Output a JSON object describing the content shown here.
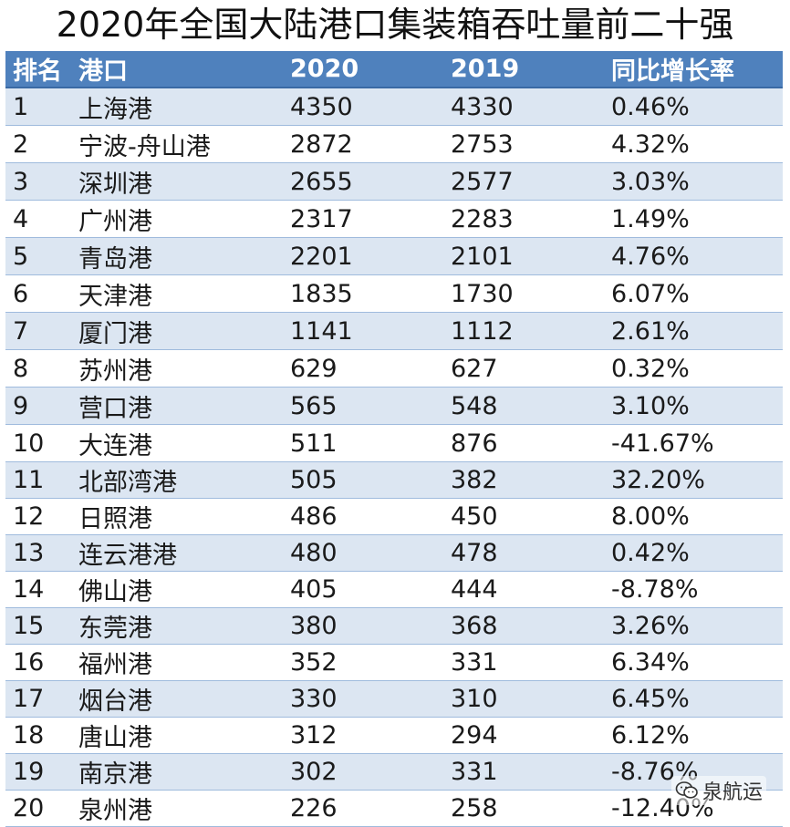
{
  "title": "2020年全国大陆港口集装箱吞吐量前二十强",
  "table": {
    "headers": [
      "排名",
      "港口",
      "2020",
      "2019",
      "同比增长率"
    ],
    "rows": [
      [
        "1",
        "上海港",
        "4350",
        "4330",
        "0.46%"
      ],
      [
        "2",
        "宁波-舟山港",
        "2872",
        "2753",
        "4.32%"
      ],
      [
        "3",
        "深圳港",
        "2655",
        "2577",
        "3.03%"
      ],
      [
        "4",
        "广州港",
        "2317",
        "2283",
        "1.49%"
      ],
      [
        "5",
        "青岛港",
        "2201",
        "2101",
        "4.76%"
      ],
      [
        "6",
        "天津港",
        "1835",
        "1730",
        "6.07%"
      ],
      [
        "7",
        "厦门港",
        "1141",
        "1112",
        "2.61%"
      ],
      [
        "8",
        "苏州港",
        "629",
        "627",
        "0.32%"
      ],
      [
        "9",
        "营口港",
        "565",
        "548",
        "3.10%"
      ],
      [
        "10",
        "大连港",
        "511",
        "876",
        "-41.67%"
      ],
      [
        "11",
        "北部湾港",
        "505",
        "382",
        "32.20%"
      ],
      [
        "12",
        "日照港",
        "486",
        "450",
        "8.00%"
      ],
      [
        "13",
        "连云港港",
        "480",
        "478",
        "0.42%"
      ],
      [
        "14",
        "佛山港",
        "405",
        "444",
        "-8.78%"
      ],
      [
        "15",
        "东莞港",
        "380",
        "368",
        "3.26%"
      ],
      [
        "16",
        "福州港",
        "352",
        "331",
        "6.34%"
      ],
      [
        "17",
        "烟台港",
        "330",
        "310",
        "6.45%"
      ],
      [
        "18",
        "唐山港",
        "312",
        "294",
        "6.12%"
      ],
      [
        "19",
        "南京港",
        "302",
        "331",
        "-8.76%"
      ],
      [
        "20",
        "泉州港",
        "226",
        "258",
        "-12.40%"
      ]
    ]
  },
  "watermark": {
    "text": "泉航运",
    "icon": "wechat-icon"
  },
  "colors": {
    "header_bg": "#4f81bd",
    "band": "#dce6f2"
  }
}
